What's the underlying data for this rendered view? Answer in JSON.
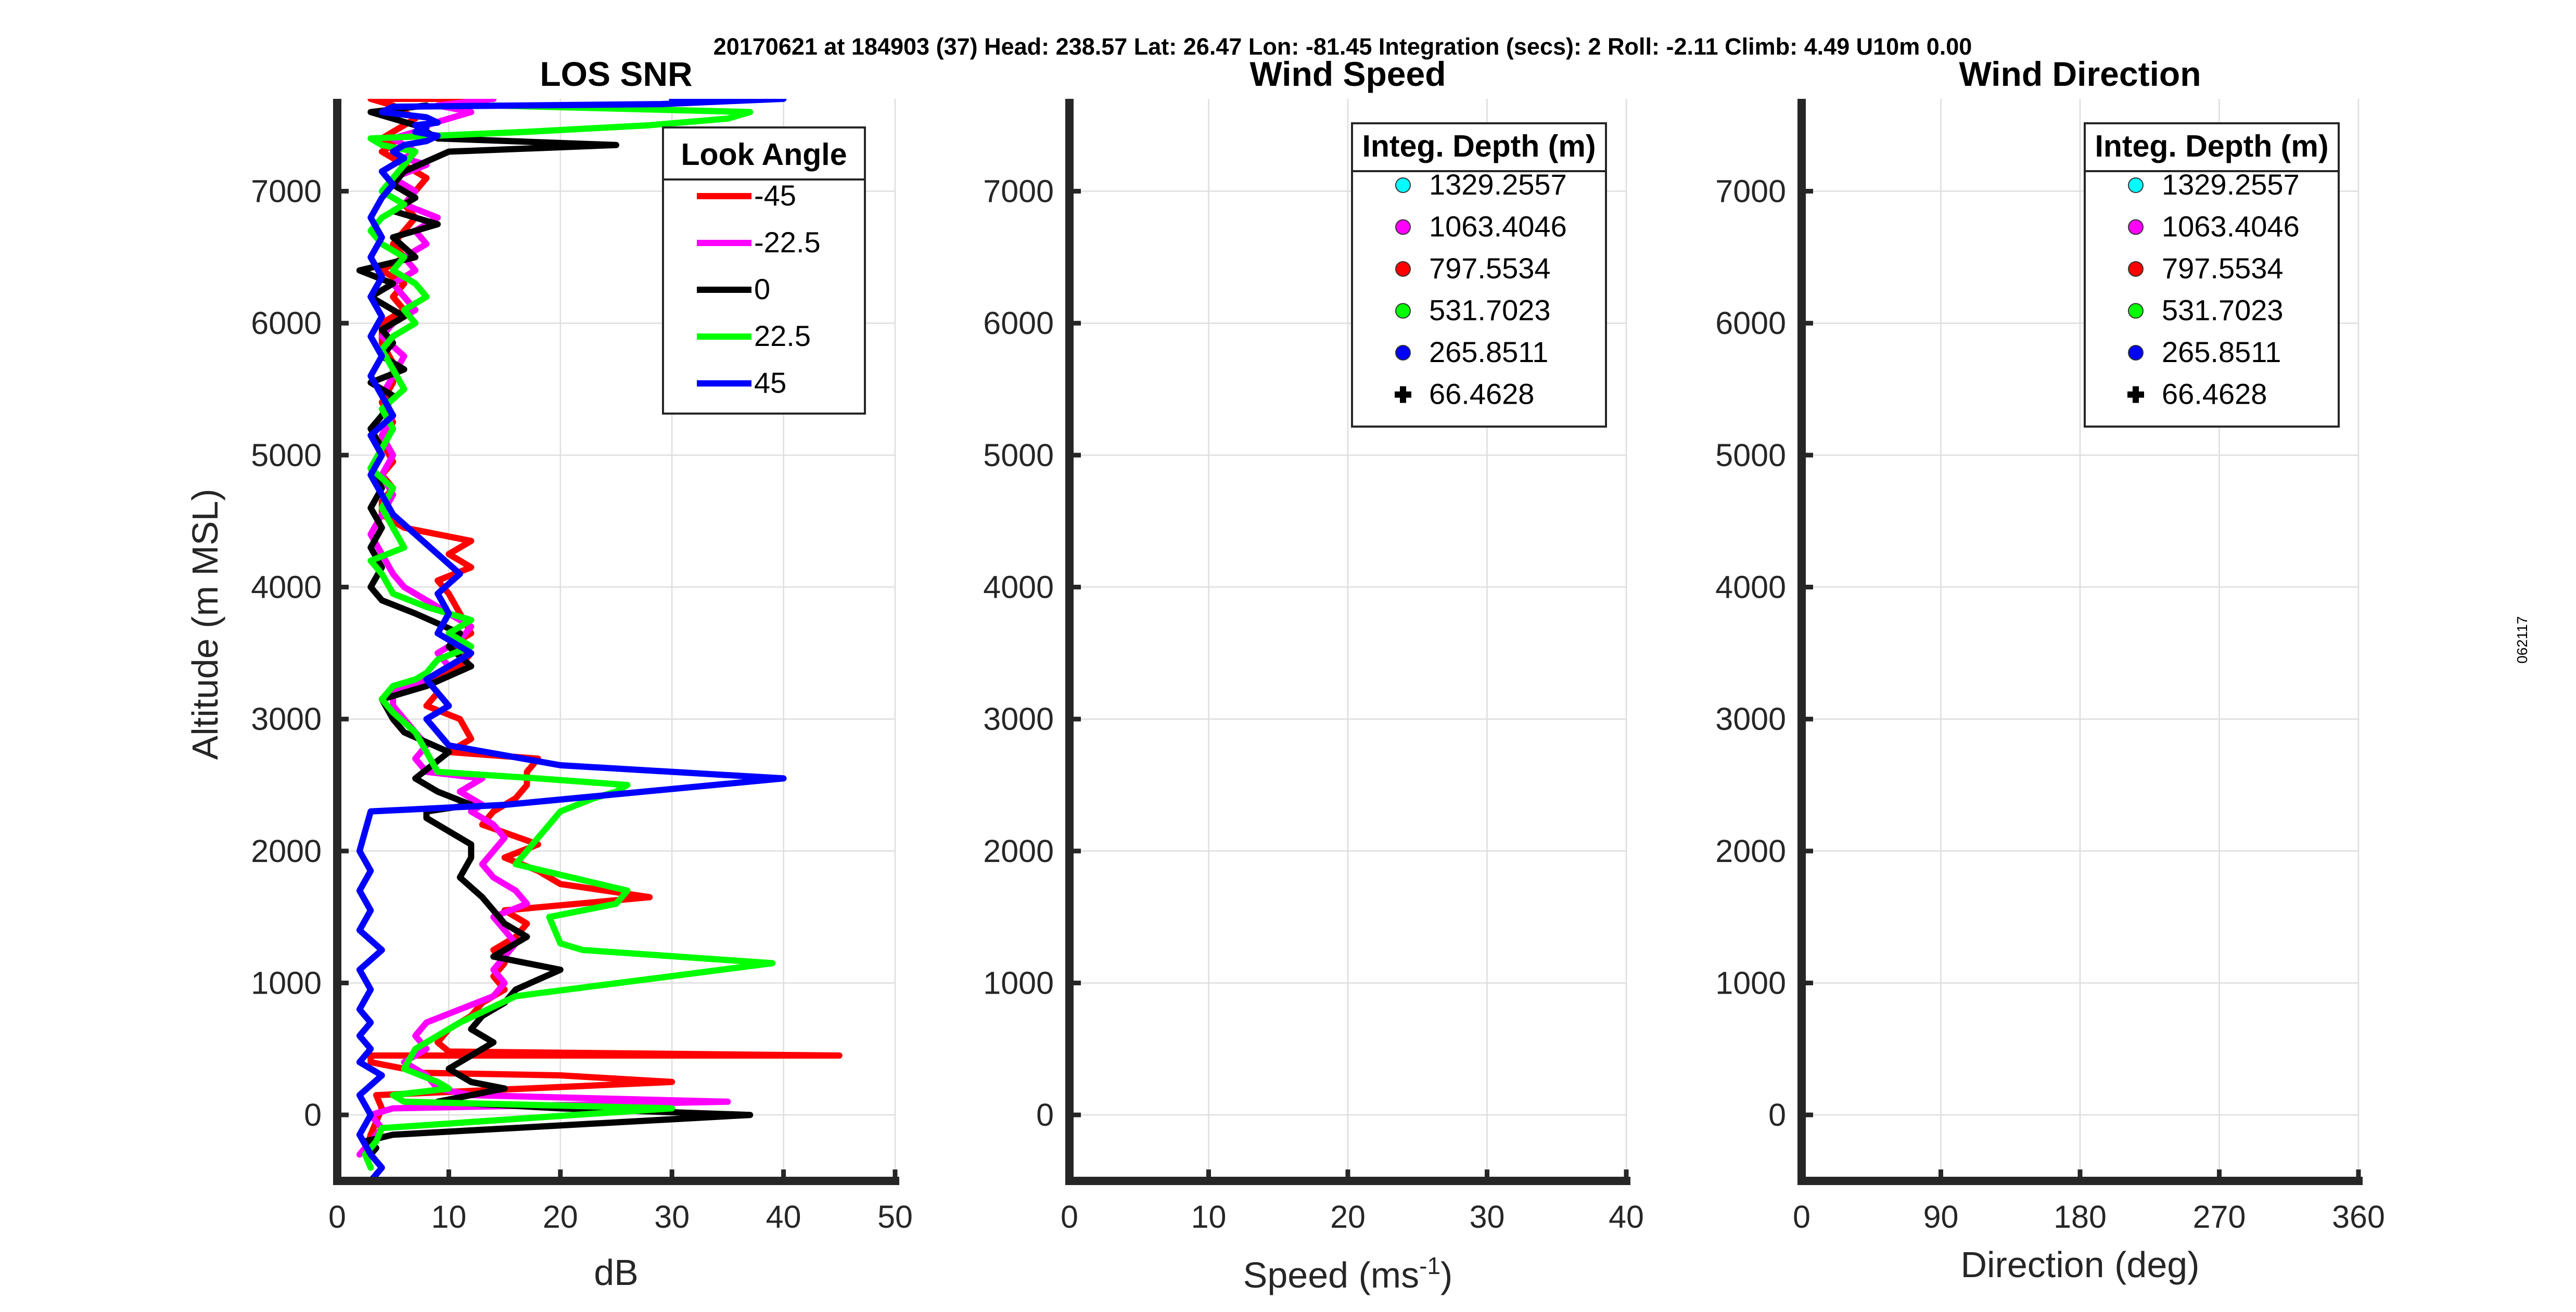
{
  "suptitle": "20170621 at 184903 (37)  Head: 238.57  Lat: 26.47  Lon: -81.45  Integration (secs): 2  Roll: -2.11  Climb: 4.49  U10m 0.00",
  "side_stamp": "062117",
  "chart_data": [
    {
      "type": "line",
      "title": "LOS SNR",
      "xlabel": "dB",
      "ylabel": "Altitude (m MSL)",
      "xlim": [
        0,
        50
      ],
      "ylim": [
        -500,
        7700
      ],
      "xticks": [
        0,
        10,
        20,
        30,
        40,
        50
      ],
      "yticks": [
        0,
        1000,
        2000,
        3000,
        4000,
        5000,
        6000,
        7000
      ],
      "grid": true,
      "legend": {
        "title": "Look Angle",
        "placement": "top-right"
      },
      "series": [
        {
          "name": "-45",
          "color": "#ff0000",
          "x": [
            2.5,
            3,
            3.5,
            4,
            3.5,
            17,
            30,
            20,
            7,
            6,
            3,
            3,
            45,
            10,
            9,
            10,
            12,
            13,
            15,
            14,
            15,
            14,
            16,
            17,
            15,
            28,
            20,
            18,
            15,
            18,
            13,
            14,
            16,
            17,
            17,
            18,
            10,
            12,
            11,
            8,
            9,
            8,
            11,
            12,
            10,
            12,
            11,
            10,
            9,
            12,
            10,
            12,
            6,
            4,
            4,
            5,
            4,
            5,
            4,
            5,
            4,
            5,
            5,
            4,
            4,
            6,
            5,
            6,
            4,
            6,
            5,
            6,
            7,
            6,
            7,
            8,
            6,
            4,
            5,
            4,
            5,
            6,
            7,
            6,
            5,
            3,
            7,
            14
          ],
          "y": [
            -300,
            -150,
            -50,
            50,
            150,
            200,
            250,
            300,
            320,
            350,
            400,
            450,
            450,
            480,
            550,
            650,
            750,
            850,
            950,
            1050,
            1150,
            1250,
            1350,
            1450,
            1550,
            1650,
            1750,
            1850,
            1950,
            2050,
            2200,
            2300,
            2400,
            2500,
            2600,
            2700,
            2750,
            2850,
            3000,
            3100,
            3200,
            3300,
            3400,
            3500,
            3550,
            3650,
            3800,
            3950,
            4050,
            4150,
            4250,
            4350,
            4450,
            4550,
            4650,
            4750,
            4850,
            4950,
            5100,
            5250,
            5400,
            5550,
            5700,
            5850,
            6000,
            6100,
            6200,
            6300,
            6400,
            6500,
            6600,
            6700,
            6800,
            6900,
            7000,
            7100,
            7200,
            7300,
            7350,
            7400,
            7450,
            7500,
            7550,
            7600,
            7650,
            7700,
            7700,
            7700
          ]
        },
        {
          "name": "-22.5",
          "color": "#ff00ff",
          "x": [
            2,
            3,
            4,
            3,
            5,
            35,
            12,
            9,
            8,
            6,
            8,
            7,
            8,
            11,
            14,
            15,
            14,
            15,
            16,
            15,
            14,
            17,
            16,
            14,
            13,
            14,
            15,
            14,
            12,
            13,
            11,
            13,
            8,
            7,
            8,
            6,
            5,
            5,
            8,
            10,
            9,
            11,
            12,
            10,
            8,
            6,
            5,
            4,
            3,
            4,
            5,
            4,
            5,
            4,
            5,
            4,
            5,
            6,
            4,
            5,
            7,
            6,
            5,
            7,
            6,
            8,
            7,
            9,
            6,
            7,
            5,
            8,
            6,
            7,
            6,
            5,
            7,
            8,
            10,
            12,
            9,
            14
          ],
          "y": [
            -300,
            -200,
            -100,
            0,
            50,
            100,
            150,
            200,
            300,
            400,
            500,
            600,
            700,
            800,
            900,
            1000,
            1100,
            1200,
            1300,
            1400,
            1500,
            1600,
            1700,
            1800,
            1900,
            2000,
            2100,
            2200,
            2300,
            2350,
            2450,
            2550,
            2600,
            2700,
            2800,
            3000,
            3100,
            3200,
            3300,
            3400,
            3500,
            3600,
            3700,
            3800,
            3900,
            4000,
            4100,
            4250,
            4400,
            4550,
            4700,
            4850,
            5000,
            5150,
            5300,
            5450,
            5600,
            5750,
            5900,
            6000,
            6100,
            6200,
            6300,
            6400,
            6500,
            6600,
            6700,
            6800,
            6900,
            7000,
            7100,
            7200,
            7250,
            7300,
            7350,
            7400,
            7450,
            7500,
            7550,
            7600,
            7650,
            7700
          ]
        },
        {
          "name": "0",
          "color": "#000000",
          "x": [
            3,
            3.5,
            2.5,
            5,
            37,
            20,
            9,
            15,
            12,
            10,
            14,
            12,
            13,
            15,
            16,
            20,
            14,
            17,
            15,
            14,
            13,
            11,
            12,
            12,
            10,
            8,
            8,
            12,
            9,
            7,
            10,
            6,
            5,
            4,
            8,
            12,
            10,
            11,
            7,
            4,
            3,
            4,
            3,
            4,
            3,
            4,
            3,
            4,
            3,
            4,
            5,
            3,
            6,
            4,
            5,
            4,
            6,
            3,
            5,
            2,
            7,
            5,
            9,
            5,
            7,
            5,
            6,
            10,
            25,
            9,
            8,
            7,
            5,
            3,
            8
          ],
          "y": [
            -300,
            -250,
            -200,
            -150,
            0,
            50,
            100,
            200,
            250,
            350,
            550,
            650,
            750,
            850,
            950,
            1100,
            1200,
            1350,
            1450,
            1550,
            1650,
            1800,
            1950,
            2050,
            2150,
            2250,
            2300,
            2350,
            2450,
            2550,
            2750,
            2900,
            3000,
            3150,
            3250,
            3400,
            3550,
            3650,
            3800,
            3900,
            4000,
            4150,
            4300,
            4450,
            4600,
            4750,
            4900,
            5050,
            5200,
            5300,
            5450,
            5550,
            5650,
            5750,
            5850,
            5950,
            6050,
            6200,
            6300,
            6400,
            6500,
            6650,
            6750,
            6850,
            6950,
            7050,
            7150,
            7300,
            7350,
            7400,
            7450,
            7500,
            7550,
            7600,
            7650
          ]
        },
        {
          "name": "22.5",
          "color": "#00ff00",
          "x": [
            3,
            2.5,
            3.5,
            4,
            30,
            6,
            5,
            10,
            9,
            6,
            7,
            11,
            16,
            39,
            22,
            20,
            19,
            25,
            26,
            21,
            16,
            17,
            18,
            19,
            20,
            23,
            25,
            26,
            18,
            9,
            8,
            7,
            5,
            4,
            5,
            7,
            8,
            9,
            12,
            10,
            12,
            8,
            5,
            4,
            3,
            6,
            5,
            4,
            5,
            3,
            4,
            5,
            4,
            6,
            5,
            4,
            5,
            7,
            6,
            8,
            7,
            5,
            6,
            4,
            3,
            4,
            6,
            4,
            5,
            6,
            7,
            4,
            3,
            17,
            28,
            35,
            37,
            14
          ],
          "y": [
            -400,
            -300,
            -200,
            -100,
            50,
            100,
            150,
            200,
            250,
            350,
            500,
            700,
            900,
            1150,
            1250,
            1300,
            1500,
            1600,
            1700,
            1800,
            1900,
            2000,
            2100,
            2200,
            2300,
            2400,
            2450,
            2500,
            2550,
            2600,
            2750,
            2900,
            3050,
            3150,
            3250,
            3300,
            3350,
            3450,
            3550,
            3650,
            3750,
            3850,
            3950,
            4100,
            4200,
            4300,
            4450,
            4600,
            4750,
            4900,
            5050,
            5200,
            5350,
            5500,
            5650,
            5800,
            5900,
            6000,
            6100,
            6200,
            6300,
            6400,
            6500,
            6600,
            6700,
            6800,
            6900,
            7000,
            7100,
            7200,
            7300,
            7350,
            7400,
            7450,
            7500,
            7550,
            7600,
            7650
          ]
        },
        {
          "name": "45",
          "color": "#0000ff",
          "x": [
            3,
            4,
            3,
            2,
            3,
            2,
            4,
            2,
            3,
            2,
            3,
            2,
            3,
            2,
            4,
            2,
            3,
            2,
            3,
            2,
            3,
            15,
            40,
            20,
            10,
            8,
            10,
            8,
            12,
            9,
            10,
            9,
            11,
            9,
            7,
            5,
            4,
            3,
            4,
            3,
            5,
            4,
            3,
            4,
            3,
            4,
            3,
            4,
            3,
            4,
            3,
            4,
            5,
            4,
            6,
            5,
            6,
            8,
            9,
            7,
            8,
            7,
            9,
            8,
            4,
            5,
            29,
            40,
            30
          ],
          "y": [
            -500,
            -400,
            -300,
            -150,
            0,
            150,
            300,
            400,
            500,
            600,
            700,
            800,
            950,
            1100,
            1250,
            1400,
            1550,
            1700,
            1850,
            2000,
            2300,
            2350,
            2550,
            2650,
            2800,
            3000,
            3100,
            3300,
            3500,
            3650,
            3800,
            3950,
            4100,
            4250,
            4400,
            4550,
            4700,
            4850,
            5000,
            5150,
            5300,
            5450,
            5600,
            5750,
            5900,
            6050,
            6200,
            6350,
            6500,
            6650,
            6800,
            6950,
            7050,
            7150,
            7250,
            7300,
            7350,
            7380,
            7420,
            7450,
            7480,
            7500,
            7520,
            7560,
            7600,
            7640,
            7660,
            7700,
            7700
          ]
        }
      ]
    },
    {
      "type": "scatter",
      "title": "Wind Speed",
      "xlabel": "Speed (ms",
      "xlabel_sup": "-1",
      "xlabel_tail": ")",
      "ylabel": "",
      "xlim": [
        0,
        40
      ],
      "ylim": [
        -500,
        7700
      ],
      "xticks": [
        0,
        10,
        20,
        30,
        40
      ],
      "yticks": [
        0,
        1000,
        2000,
        3000,
        4000,
        5000,
        6000,
        7000
      ],
      "grid": true,
      "legend": {
        "title": "Integ. Depth (m)",
        "placement": "top-right"
      },
      "series": [
        {
          "name": "1329.2557",
          "color": "#00ffff",
          "marker": "circle",
          "values": []
        },
        {
          "name": "1063.4046",
          "color": "#ff00ff",
          "marker": "circle",
          "values": []
        },
        {
          "name": "797.5534",
          "color": "#ff0000",
          "marker": "circle",
          "values": []
        },
        {
          "name": "531.7023",
          "color": "#00ff00",
          "marker": "circle",
          "values": []
        },
        {
          "name": "265.8511",
          "color": "#0000ff",
          "marker": "circle",
          "values": []
        },
        {
          "name": "66.4628",
          "color": "#000000",
          "marker": "plus",
          "values": []
        }
      ]
    },
    {
      "type": "scatter",
      "title": "Wind Direction",
      "xlabel": "Direction (deg)",
      "ylabel": "",
      "xlim": [
        0,
        360
      ],
      "ylim": [
        -500,
        7700
      ],
      "xticks": [
        0,
        90,
        180,
        270,
        360
      ],
      "yticks": [
        0,
        1000,
        2000,
        3000,
        4000,
        5000,
        6000,
        7000
      ],
      "grid": true,
      "legend": {
        "title": "Integ. Depth (m)",
        "placement": "top-right"
      },
      "series": [
        {
          "name": "1329.2557",
          "color": "#00ffff",
          "marker": "circle",
          "values": []
        },
        {
          "name": "1063.4046",
          "color": "#ff00ff",
          "marker": "circle",
          "values": []
        },
        {
          "name": "797.5534",
          "color": "#ff0000",
          "marker": "circle",
          "values": []
        },
        {
          "name": "531.7023",
          "color": "#00ff00",
          "marker": "circle",
          "values": []
        },
        {
          "name": "265.8511",
          "color": "#0000ff",
          "marker": "circle",
          "values": []
        },
        {
          "name": "66.4628",
          "color": "#000000",
          "marker": "plus",
          "values": []
        }
      ]
    }
  ]
}
